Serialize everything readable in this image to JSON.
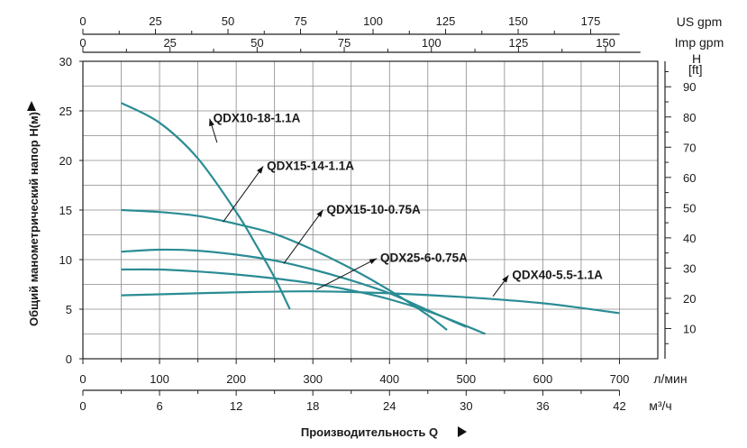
{
  "chart_data": {
    "type": "line",
    "x_unit_primary": "л/мин",
    "x_ticks_primary": [
      0,
      100,
      200,
      300,
      400,
      500,
      600,
      700
    ],
    "x_unit_m3h": "м³/ч",
    "x_ticks_m3h": [
      0,
      6,
      12,
      18,
      24,
      30,
      36,
      42
    ],
    "x_unit_us": "US gpm",
    "x_ticks_us": [
      0,
      25,
      50,
      75,
      100,
      125,
      150,
      175
    ],
    "x_unit_imp": "Imp gpm",
    "x_ticks_imp": [
      0,
      25,
      50,
      75,
      100,
      125,
      150
    ],
    "xlabel": "Производительность Q",
    "ylabel": "Общий манометрический напор H(м)",
    "y_unit_right": "H\n[ft]",
    "ylim": [
      0,
      30
    ],
    "xlim": [
      0,
      750
    ],
    "y_ticks_left": [
      0,
      5,
      10,
      15,
      20,
      25,
      30
    ],
    "y_ticks_right": [
      10,
      20,
      30,
      40,
      50,
      60,
      70,
      80,
      90
    ],
    "grid": true,
    "series": [
      {
        "name": "QDX10-18-1.1A",
        "x": [
          50,
          100,
          150,
          200,
          225,
          250,
          270
        ],
        "y": [
          25.8,
          23.8,
          20.2,
          14.8,
          11.6,
          8.2,
          5.0
        ],
        "label_at": [
          170,
          24.4
        ],
        "label_anchor": [
          175,
          21.8
        ]
      },
      {
        "name": "QDX15-14-1.1A",
        "x": [
          50,
          100,
          150,
          200,
          250,
          300,
          350,
          400,
          450,
          475
        ],
        "y": [
          15.0,
          14.8,
          14.4,
          13.6,
          12.6,
          11.0,
          9.1,
          6.9,
          4.4,
          2.9
        ],
        "label_at": [
          240,
          19.6
        ],
        "label_anchor": [
          183,
          13.8
        ]
      },
      {
        "name": "QDX15-10-0.75A",
        "x": [
          50,
          100,
          150,
          200,
          250,
          300,
          350,
          400,
          450,
          500
        ],
        "y": [
          10.8,
          11.0,
          10.9,
          10.5,
          9.9,
          9.0,
          7.9,
          6.6,
          4.9,
          3.2
        ],
        "label_at": [
          318,
          15.2
        ],
        "label_anchor": [
          262,
          9.6
        ]
      },
      {
        "name": "QDX25-6-0.75A",
        "x": [
          50,
          100,
          150,
          200,
          250,
          300,
          350,
          400,
          450,
          500,
          525
        ],
        "y": [
          9.0,
          9.0,
          8.8,
          8.5,
          8.1,
          7.6,
          6.9,
          6.0,
          4.8,
          3.3,
          2.5
        ],
        "label_at": [
          388,
          10.3
        ],
        "label_anchor": [
          305,
          7.0
        ]
      },
      {
        "name": "QDX40-5.5-1.1A",
        "x": [
          50,
          100,
          200,
          300,
          400,
          500,
          600,
          700
        ],
        "y": [
          6.4,
          6.5,
          6.7,
          6.8,
          6.6,
          6.2,
          5.6,
          4.6
        ],
        "label_at": [
          560,
          8.6
        ],
        "label_anchor": [
          535,
          6.3
        ]
      }
    ]
  }
}
